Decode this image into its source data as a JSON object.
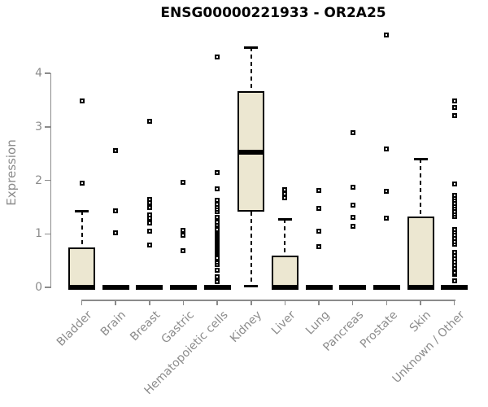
{
  "chart_data": {
    "type": "boxplot",
    "title": "ENSG00000221933 - OR2A25",
    "ylabel": "Expression",
    "xlabel": "",
    "yticks": [
      0,
      1,
      2,
      3,
      4
    ],
    "ylim": [
      0,
      4.75
    ],
    "grid": false,
    "legend": "none",
    "colors": {
      "box_fill": "#ece7d1",
      "box_border": "#000000",
      "axis": "#8b8b8b",
      "title": "#000000",
      "outlier": "#000000"
    },
    "categories": [
      "Bladder",
      "Brain",
      "Breast",
      "Gastric",
      "Hematopoietic cells",
      "Kidney",
      "Liver",
      "Lung",
      "Pancreas",
      "Prostate",
      "Skin",
      "Unknown / Other"
    ],
    "series": [
      {
        "name": "Bladder",
        "whisker_low": 0,
        "q1": 0,
        "median": 0,
        "q3": 0.75,
        "whisker_high": 1.43,
        "outliers": [
          1.95,
          3.48
        ]
      },
      {
        "name": "Brain",
        "whisker_low": 0,
        "q1": 0,
        "median": 0,
        "q3": 0,
        "whisker_high": 0,
        "outliers": [
          1.02,
          1.43,
          2.55
        ]
      },
      {
        "name": "Breast",
        "whisker_low": 0,
        "q1": 0,
        "median": 0,
        "q3": 0,
        "whisker_high": 0,
        "outliers": [
          0.79,
          1.05,
          1.2,
          1.3,
          1.36,
          1.49,
          1.58,
          1.65,
          3.11
        ]
      },
      {
        "name": "Gastric",
        "whisker_low": 0,
        "q1": 0,
        "median": 0,
        "q3": 0,
        "whisker_high": 0,
        "outliers": [
          0.68,
          0.97,
          1.07,
          1.96
        ]
      },
      {
        "name": "Hematopoietic cells",
        "whisker_low": 0,
        "q1": 0,
        "median": 0,
        "q3": 0,
        "whisker_high": 0,
        "outliers": [
          0.11,
          0.16,
          0.2,
          0.32,
          0.43,
          0.47,
          0.51,
          0.55,
          0.63,
          0.66,
          0.69,
          0.72,
          0.75,
          0.78,
          0.81,
          0.84,
          0.87,
          0.9,
          0.93,
          0.96,
          0.99,
          1.02,
          1.05,
          1.08,
          1.17,
          1.22,
          1.27,
          1.31,
          1.42,
          1.46,
          1.5,
          1.55,
          1.62,
          1.84,
          2.15,
          4.3
        ]
      },
      {
        "name": "Kidney",
        "whisker_low": 0.02,
        "q1": 1.42,
        "median": 2.52,
        "q3": 3.66,
        "whisker_high": 4.48,
        "outliers": []
      },
      {
        "name": "Liver",
        "whisker_low": 0,
        "q1": 0,
        "median": 0,
        "q3": 0.59,
        "whisker_high": 1.27,
        "outliers": [
          1.68,
          1.75,
          1.82
        ]
      },
      {
        "name": "Lung",
        "whisker_low": 0,
        "q1": 0,
        "median": 0,
        "q3": 0,
        "whisker_high": 0,
        "outliers": [
          0.76,
          1.05,
          1.48,
          1.81
        ]
      },
      {
        "name": "Pancreas",
        "whisker_low": 0,
        "q1": 0,
        "median": 0,
        "q3": 0,
        "whisker_high": 0,
        "outliers": [
          1.14,
          1.31,
          1.53,
          1.87,
          2.89
        ]
      },
      {
        "name": "Prostate",
        "whisker_low": 0,
        "q1": 0,
        "median": 0,
        "q3": 0,
        "whisker_high": 0,
        "outliers": [
          1.3,
          1.79,
          2.58,
          4.72
        ]
      },
      {
        "name": "Skin",
        "whisker_low": 0,
        "q1": 0,
        "median": 0,
        "q3": 1.33,
        "whisker_high": 2.4,
        "outliers": []
      },
      {
        "name": "Unknown / Other",
        "whisker_low": 0,
        "q1": 0,
        "median": 0,
        "q3": 0,
        "whisker_high": 0,
        "outliers": [
          0.12,
          0.24,
          0.28,
          0.35,
          0.41,
          0.47,
          0.53,
          0.59,
          0.65,
          0.8,
          0.85,
          0.91,
          0.97,
          1.03,
          1.08,
          1.32,
          1.37,
          1.42,
          1.47,
          1.52,
          1.57,
          1.62,
          1.67,
          1.72,
          1.93,
          3.21,
          3.36,
          3.49
        ]
      }
    ]
  }
}
